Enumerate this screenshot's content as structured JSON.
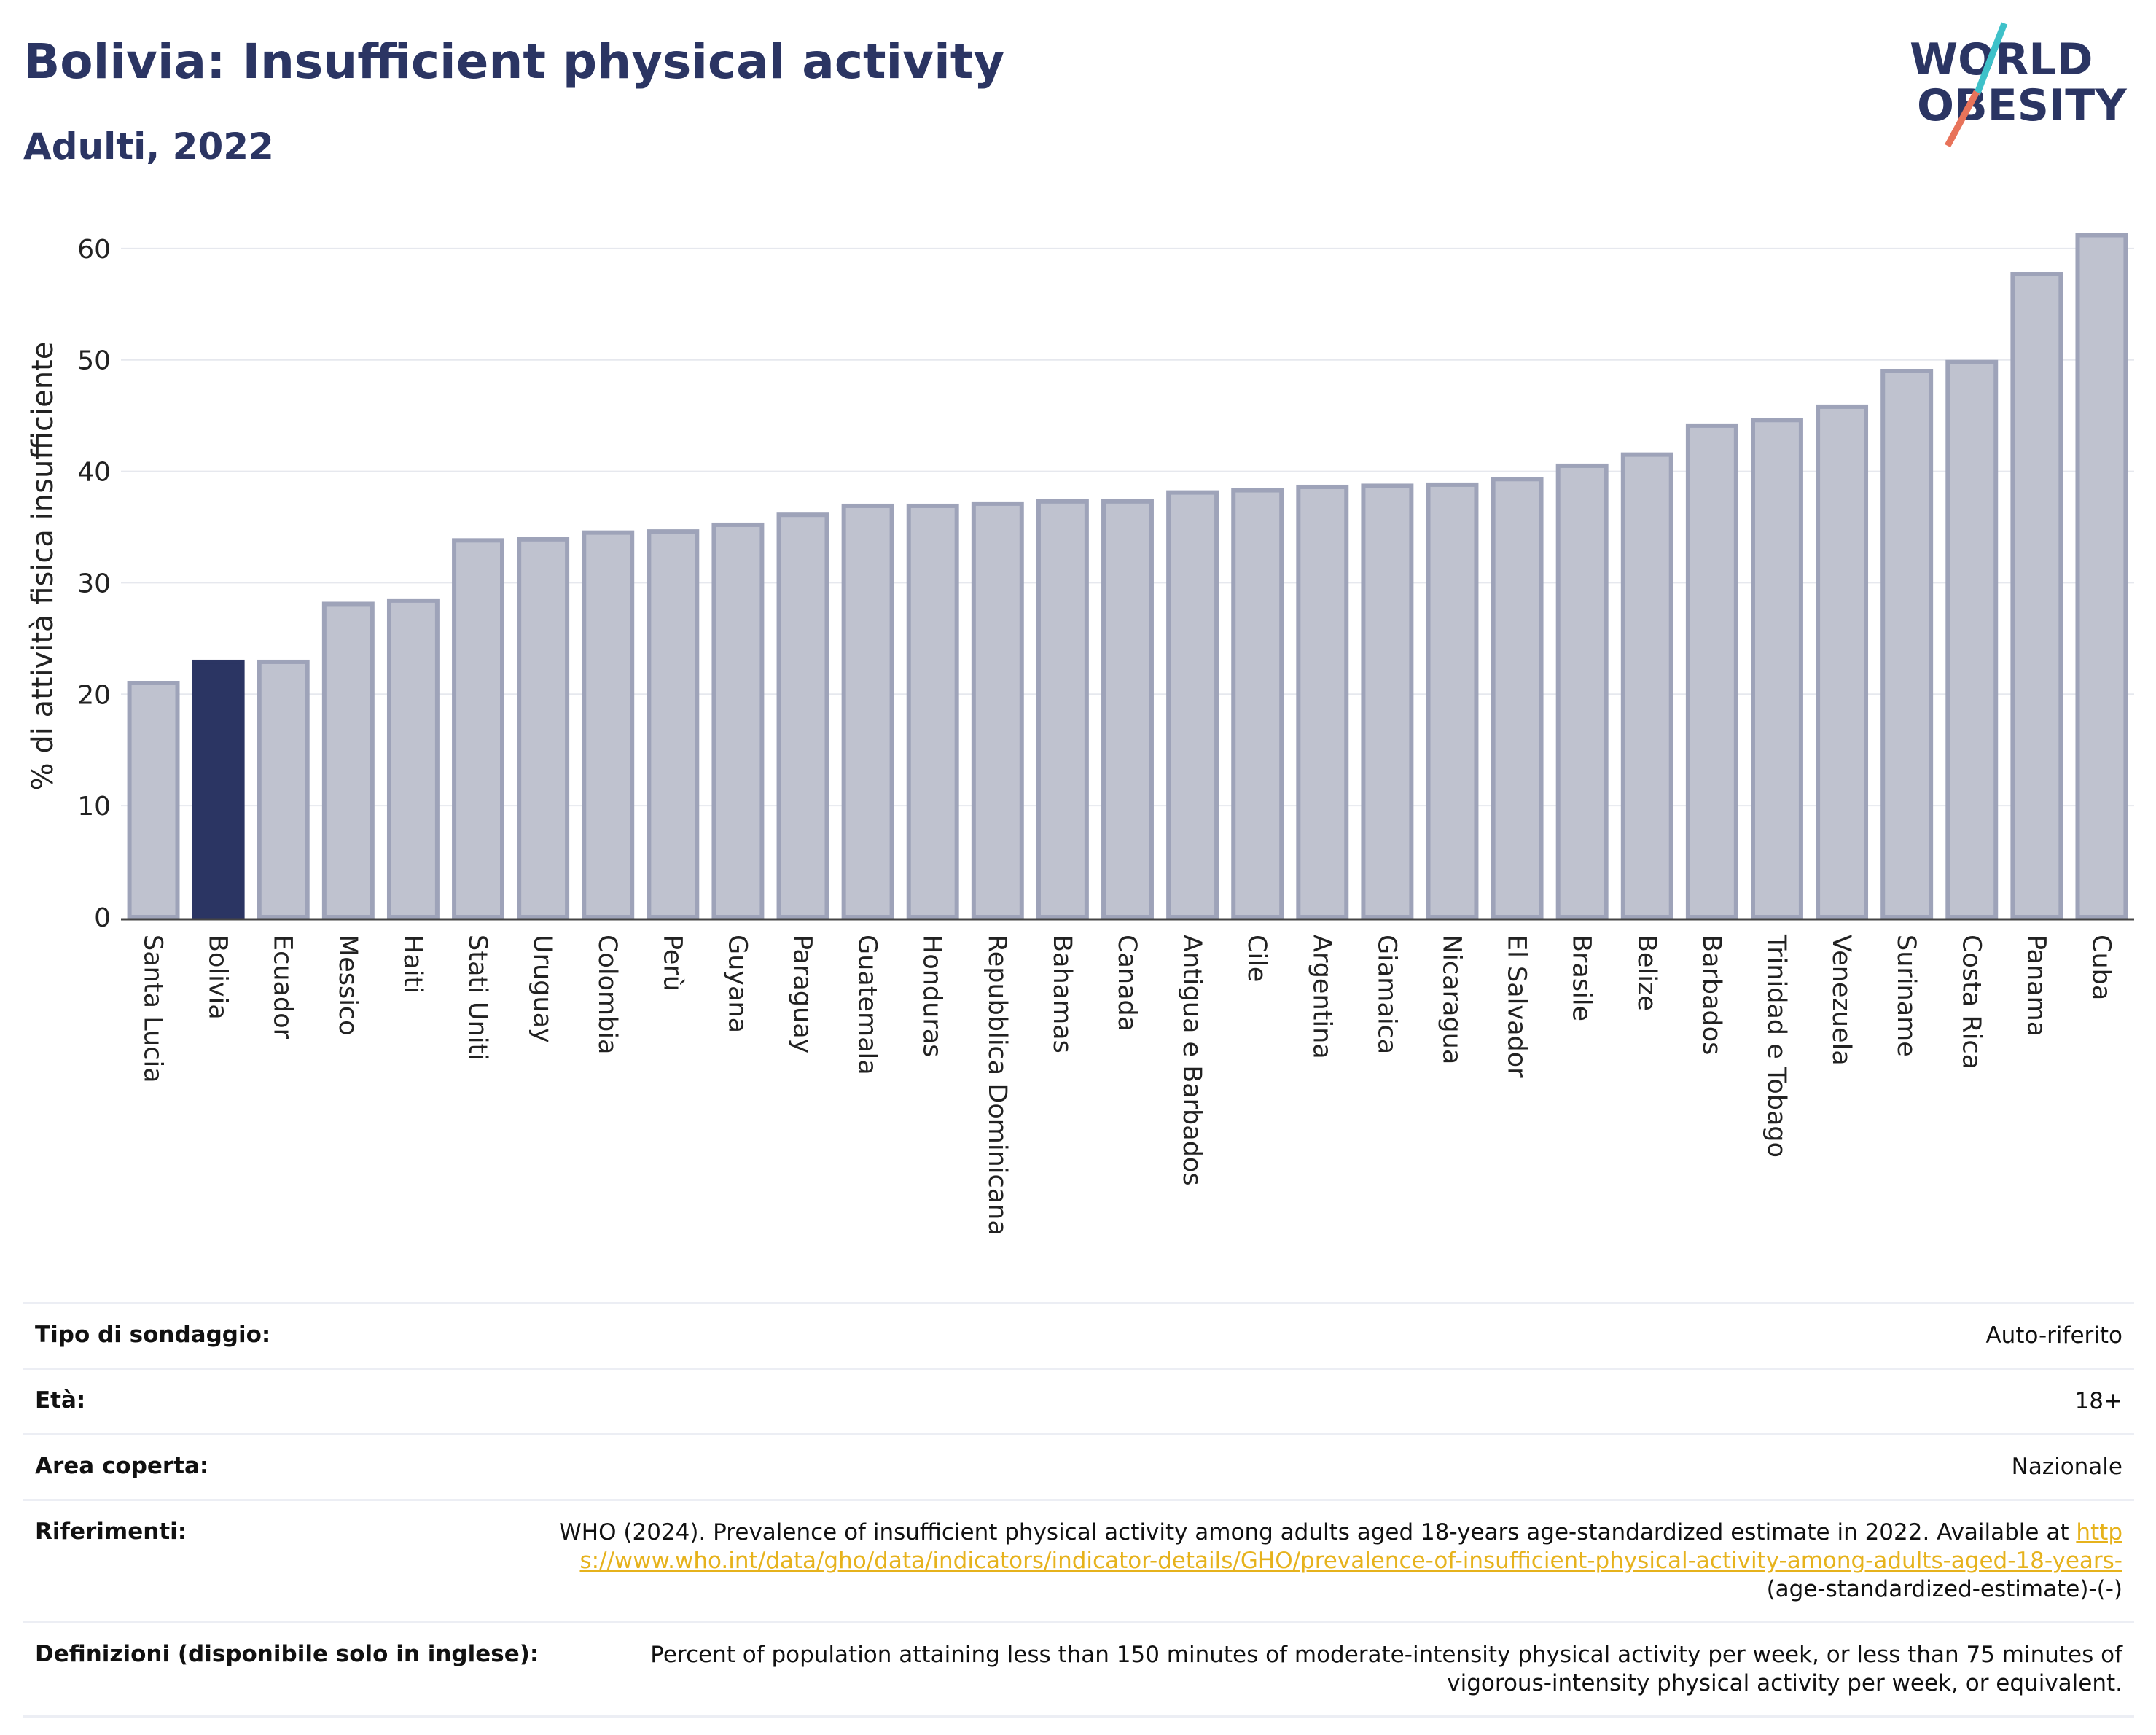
{
  "header": {
    "title": "Bolivia: Insufficient physical activity",
    "subtitle": "Adulti, 2022"
  },
  "logo": {
    "line1": "WORLD",
    "line2": "OBESITY",
    "slash_colors": [
      "#3ec1c9",
      "#e8735a"
    ],
    "text_color": "#2b3563"
  },
  "chart_data": {
    "type": "bar",
    "ylabel": "% di attività fisica insufficiente",
    "ylim": [
      0,
      63
    ],
    "yticks": [
      0,
      10,
      20,
      30,
      40,
      50,
      60
    ],
    "grid": true,
    "highlight": "Bolivia",
    "colors": {
      "bar": "#bfc2cf",
      "bar_stroke": "#9ea3b9",
      "highlight": "#2b3563",
      "grid": "#e6e8ee",
      "axis": "#444444"
    },
    "categories": [
      "Santa Lucia",
      "Bolivia",
      "Ecuador",
      "Messico",
      "Haiti",
      "Stati Uniti",
      "Uruguay",
      "Colombia",
      "Perù",
      "Guyana",
      "Paraguay",
      "Guatemala",
      "Honduras",
      "Repubblica Dominicana",
      "Bahamas",
      "Canada",
      "Antigua e Barbados",
      "Cile",
      "Argentina",
      "Giamaica",
      "Nicaragua",
      "El Salvador",
      "Brasile",
      "Belize",
      "Barbados",
      "Trinidad e Tobago",
      "Venezuela",
      "Suriname",
      "Costa Rica",
      "Panama",
      "Cuba"
    ],
    "values": [
      21.0,
      22.9,
      22.9,
      28.1,
      28.4,
      33.8,
      33.9,
      34.5,
      34.6,
      35.2,
      36.1,
      36.9,
      36.9,
      37.1,
      37.3,
      37.3,
      38.1,
      38.3,
      38.6,
      38.7,
      38.8,
      39.3,
      40.5,
      41.5,
      44.1,
      44.6,
      45.8,
      49.0,
      49.8,
      57.7,
      61.2
    ]
  },
  "info": {
    "rows": [
      {
        "label": "Tipo di sondaggio:",
        "value": "Auto-riferito"
      },
      {
        "label": "Età:",
        "value": "18+"
      },
      {
        "label": "Area coperta:",
        "value": "Nazionale"
      }
    ],
    "references": {
      "label": "Riferimenti:",
      "text_before": "WHO (2024). Prevalence of insufficient physical activity among adults aged 18-years age-standardized estimate in 2022. Available at ",
      "link": "https://www.who.int/data/gho/data/indicators/indicator-details/GHO/prevalence-of-insufficient-physical-activity-among-adults-aged-18-years-",
      "text_after": "(age-standardized-estimate)-(-)"
    },
    "definitions": {
      "label": "Definizioni (disponibile solo in inglese):",
      "value": "Percent of population attaining less than 150 minutes of moderate-intensity physical activity per week, or less than 75 minutes of vigorous-intensity physical activity per week, or equivalent."
    }
  }
}
